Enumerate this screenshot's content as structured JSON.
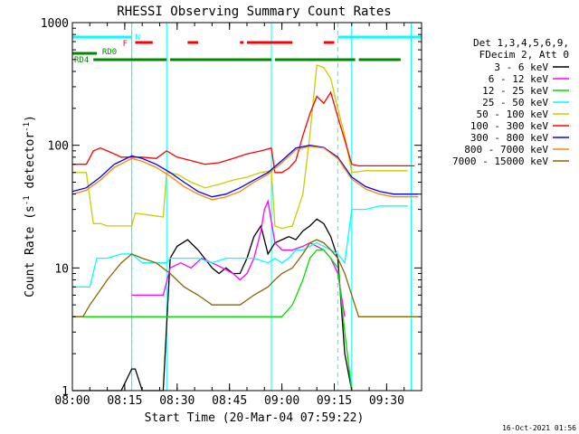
{
  "chart_data": {
    "type": "line",
    "title": "RHESSI Observing Summary Count Rates",
    "xlabel": "Start Time (20-Mar-04 07:59:22)",
    "ylabel": "Count Rate (s",
    "ylabel_sup": "-1",
    "ylabel_tail": " detector",
    "ylabel_end": ")",
    "y_scale": "log",
    "ylim": [
      1,
      1000
    ],
    "xlim_minutes": [
      0,
      100
    ],
    "x_tick_labels": [
      "08:00",
      "08:15",
      "08:30",
      "08:45",
      "09:00",
      "09:15",
      "09:30"
    ],
    "x_tick_minutes": [
      0,
      15,
      30,
      45,
      60,
      75,
      90
    ],
    "y_tick_labels": [
      "1",
      "10",
      "100",
      "1000"
    ],
    "y_tick_values": [
      1,
      10,
      100,
      1000
    ],
    "footer_timestamp": "16-Oct-2021 01:56",
    "legend": {
      "header": [
        "Det 1,3,4,5,6,9,",
        "FDecim 2, Att 0"
      ],
      "entries": [
        {
          "label": "3 - 6 keV",
          "color": "#000000"
        },
        {
          "label": "6 - 12 keV",
          "color": "#ff00ff"
        },
        {
          "label": "12 - 25 keV",
          "color": "#00dd00"
        },
        {
          "label": "25 - 50 keV",
          "color": "#00ffff"
        },
        {
          "label": "50 - 100 keV",
          "color": "#cccc00"
        },
        {
          "label": "100 - 300 keV",
          "color": "#ff0000"
        },
        {
          "label": "300 - 800 keV",
          "color": "#0000ff"
        },
        {
          "label": "800 - 7000 keV",
          "color": "#ff8800"
        },
        {
          "label": "7000 - 15000 keV",
          "color": "#886600"
        }
      ]
    },
    "flag_labels": {
      "N": "N",
      "F": "F",
      "RD0": "RD0",
      "RD4": "RD4"
    },
    "flags": {
      "N": {
        "color": "#00ffff",
        "segments": [
          [
            0,
            17
          ],
          [
            76,
            100
          ]
        ]
      },
      "F": {
        "color": "#ff0000",
        "segments": [
          [
            18,
            23
          ],
          [
            33,
            36
          ],
          [
            48,
            49
          ],
          [
            50,
            63
          ],
          [
            72,
            75
          ]
        ]
      },
      "RD0": {
        "color": "#008800",
        "segments": [
          [
            0,
            7
          ]
        ]
      },
      "RD4": {
        "color": "#008800",
        "segments": [
          [
            6,
            27
          ],
          [
            28,
            57
          ],
          [
            58,
            81
          ],
          [
            82,
            94
          ]
        ]
      }
    },
    "night_boundaries_minutes": [
      17,
      76
    ],
    "saa_boundaries_minutes": [
      17,
      27,
      57,
      80,
      97
    ],
    "series": [
      {
        "name": "3 - 6 keV",
        "color": "#000000",
        "x": [
          0,
          3,
          5,
          7,
          10,
          14,
          17,
          18,
          20,
          22,
          24,
          26,
          28,
          30,
          33,
          36,
          40,
          42,
          44,
          46,
          48,
          50,
          52,
          54,
          56,
          58,
          60,
          62,
          64,
          66,
          68,
          70,
          72,
          74,
          76,
          78,
          80
        ],
        "y": [
          1,
          1,
          1,
          1,
          1,
          1,
          1.5,
          1.5,
          1,
          1,
          1,
          1,
          12,
          15,
          17,
          14,
          10,
          9,
          10,
          9,
          9,
          12,
          18,
          22,
          13,
          16,
          17,
          18,
          17,
          20,
          22,
          25,
          23,
          18,
          12,
          2,
          1
        ]
      },
      {
        "name": "6 - 12 keV",
        "color": "#ff00ff",
        "x": [
          17,
          20,
          23,
          26,
          28,
          31,
          34,
          37,
          40,
          43,
          46,
          48,
          50,
          52,
          54,
          55,
          56,
          58,
          60,
          63,
          66,
          68,
          70,
          72,
          74,
          76,
          78
        ],
        "y": [
          6,
          6,
          6,
          6,
          10,
          11,
          10,
          12,
          11,
          10,
          9,
          8,
          9,
          12,
          20,
          30,
          35,
          16,
          14,
          14,
          15,
          16,
          15,
          14,
          12,
          9,
          4
        ]
      },
      {
        "name": "12 - 25 keV",
        "color": "#00dd00",
        "x": [
          0,
          3,
          5,
          7,
          10,
          14,
          17,
          20,
          23,
          26,
          28,
          32,
          36,
          40,
          44,
          48,
          52,
          56,
          58,
          60,
          63,
          66,
          68,
          70,
          72,
          74,
          76,
          78,
          80
        ],
        "y": [
          4,
          4,
          4,
          4,
          4,
          4,
          4,
          4,
          4,
          4,
          4,
          4,
          4,
          4,
          4,
          4,
          4,
          4,
          4,
          4,
          5,
          8,
          12,
          14,
          14,
          12,
          10,
          3,
          1
        ]
      },
      {
        "name": "25 - 50 keV",
        "color": "#00ffff",
        "x": [
          0,
          3,
          5,
          7,
          10,
          14,
          17,
          20,
          24,
          27,
          28,
          32,
          36,
          40,
          44,
          48,
          52,
          56,
          58,
          60,
          62,
          64,
          66,
          68,
          70,
          72,
          74,
          76,
          78,
          80,
          84,
          88,
          92,
          96
        ],
        "y": [
          7,
          7,
          7,
          12,
          12,
          13,
          13,
          11,
          11,
          11,
          12,
          12,
          12,
          11,
          12,
          12,
          12,
          11,
          12,
          11,
          12,
          14,
          14,
          15,
          16,
          15,
          14,
          13,
          11,
          30,
          30,
          32,
          32,
          32
        ]
      },
      {
        "name": "50 - 100 keV",
        "color": "#cccc00",
        "x": [
          0,
          4,
          6,
          8,
          10,
          14,
          17,
          18,
          22,
          26,
          27,
          30,
          34,
          38,
          42,
          46,
          50,
          54,
          57,
          58,
          60,
          63,
          66,
          68,
          70,
          72,
          74,
          76,
          78,
          80,
          84,
          88,
          92,
          96
        ],
        "y": [
          60,
          60,
          23,
          23,
          22,
          22,
          22,
          28,
          27,
          26,
          60,
          58,
          50,
          45,
          48,
          52,
          55,
          60,
          62,
          22,
          21,
          22,
          40,
          120,
          450,
          430,
          350,
          200,
          120,
          60,
          62,
          62,
          62,
          62
        ]
      },
      {
        "name": "100 - 300 keV",
        "color": "#ff0000",
        "x": [
          0,
          4,
          6,
          8,
          10,
          12,
          14,
          17,
          20,
          24,
          27,
          30,
          34,
          38,
          42,
          46,
          50,
          54,
          57,
          58,
          60,
          62,
          64,
          66,
          68,
          70,
          72,
          74,
          76,
          78,
          80,
          82,
          86,
          90,
          94,
          98
        ],
        "y": [
          70,
          70,
          90,
          95,
          90,
          85,
          80,
          80,
          80,
          78,
          90,
          80,
          75,
          70,
          72,
          78,
          85,
          90,
          95,
          60,
          60,
          65,
          75,
          120,
          180,
          250,
          220,
          270,
          170,
          110,
          70,
          68,
          68,
          68,
          68,
          68
        ]
      },
      {
        "name": "300 - 800 keV",
        "color": "#0000ff",
        "x": [
          0,
          4,
          8,
          12,
          17,
          20,
          24,
          28,
          32,
          36,
          40,
          44,
          48,
          52,
          56,
          60,
          64,
          68,
          72,
          76,
          80,
          84,
          88,
          92,
          96,
          99
        ],
        "y": [
          42,
          45,
          55,
          70,
          82,
          78,
          70,
          60,
          50,
          42,
          38,
          40,
          45,
          52,
          60,
          75,
          95,
          100,
          96,
          80,
          55,
          46,
          42,
          40,
          40,
          40
        ]
      },
      {
        "name": "800 - 7000 keV",
        "color": "#ff8800",
        "x": [
          0,
          4,
          8,
          12,
          17,
          20,
          24,
          28,
          32,
          36,
          40,
          44,
          48,
          52,
          56,
          60,
          64,
          68,
          72,
          76,
          80,
          84,
          88,
          92,
          96,
          99
        ],
        "y": [
          40,
          43,
          52,
          66,
          78,
          74,
          66,
          56,
          46,
          40,
          36,
          38,
          42,
          50,
          58,
          72,
          92,
          98,
          95,
          78,
          53,
          44,
          40,
          38,
          38,
          38
        ]
      },
      {
        "name": "7000 - 15000 keV",
        "color": "#886600",
        "x": [
          0,
          3,
          5,
          7,
          10,
          14,
          17,
          20,
          24,
          28,
          32,
          36,
          40,
          44,
          48,
          52,
          56,
          58,
          60,
          63,
          66,
          68,
          70,
          72,
          74,
          76,
          78,
          80,
          82,
          84,
          88,
          92,
          96,
          99
        ],
        "y": [
          4,
          4,
          5,
          6,
          8,
          11,
          13,
          12,
          11,
          9,
          7,
          6,
          5,
          5,
          5,
          6,
          7,
          8,
          9,
          10,
          13,
          16,
          17,
          16,
          14,
          12,
          9,
          6,
          4,
          4,
          4,
          4,
          4,
          4
        ]
      }
    ]
  }
}
